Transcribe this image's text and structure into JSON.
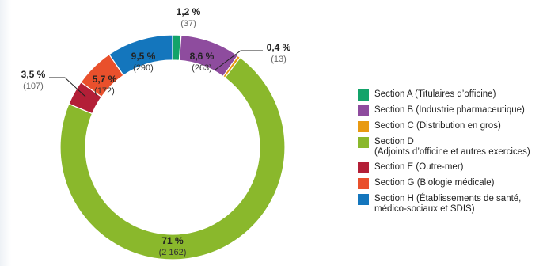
{
  "chart_data": {
    "type": "pie",
    "donut": true,
    "legend_position": "right",
    "categories": [
      "Section A (Titulaires d’officine)",
      "Section B (Industrie pharmaceutique)",
      "Section C (Distribution en gros)",
      "Section D\n(Adjoints d’officine et autres exercices)",
      "Section E (Outre-mer)",
      "Section G (Biologie médicale)",
      "Section H (Établissements de santé,\nmédico-sociaux et SDIS)"
    ],
    "values": [
      37,
      263,
      13,
      2162,
      107,
      172,
      290
    ],
    "percent_labels": [
      "1,2 %",
      "8,6 %",
      "0,4 %",
      "71 %",
      "3,5 %",
      "5,7 %",
      "9,5 %"
    ],
    "count_labels": [
      "(37)",
      "(263)",
      "(13)",
      "(2 162)",
      "(107)",
      "(172)",
      "(290)"
    ],
    "colors": [
      "#13a36a",
      "#8e4c9e",
      "#e89a12",
      "#8ab82c",
      "#b31f37",
      "#e9502c",
      "#1476bd"
    ]
  }
}
